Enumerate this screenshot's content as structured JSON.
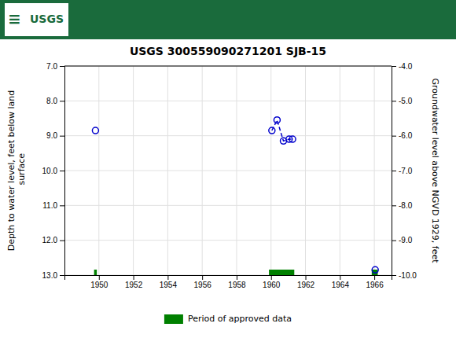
{
  "chart_data": {
    "type": "scatter",
    "title": "USGS 300559090271201 SJB-15",
    "annotations": [
      "≡",
      "USGS"
    ],
    "xlabel": null,
    "ylabel": "Depth to water level, feet below land\n surface",
    "y2label": "Groundwater level above NGVD 1929, feet",
    "x": [
      1949.8,
      1960.05,
      1960.35,
      1960.72,
      1961.05,
      1961.25,
      1966.05
    ],
    "series": [
      {
        "type": "scatter",
        "marker": "circle",
        "color": "#0000cc",
        "values": [
          8.85,
          8.85,
          8.55,
          9.15,
          9.1,
          9.1,
          12.85
        ]
      },
      {
        "type": "line",
        "line_style": "dashed",
        "color": "#0000cc",
        "values": [
          null,
          8.85,
          8.55,
          9.15,
          9.1,
          9.1,
          null
        ]
      },
      {
        "type": "period",
        "name": "Period of approved data",
        "color": "#008000",
        "start": [
          1949.72,
          1959.88,
          1965.85
        ],
        "end": [
          1949.88,
          1961.35,
          1966.2
        ]
      }
    ],
    "xlim": [
      1948.0,
      1967.0
    ],
    "xticks": [
      1950,
      1952,
      1954,
      1956,
      1958,
      1960,
      1962,
      1964,
      1966
    ],
    "ylim": [
      13.0,
      7.0
    ],
    "yticks": [
      {
        "value": 7.0,
        "label": "7.0"
      },
      {
        "value": 8.0,
        "label": "8.0"
      },
      {
        "value": 9.0,
        "label": "9.0"
      },
      {
        "value": 10.0,
        "label": "10.0"
      },
      {
        "value": 11.0,
        "label": "11.0"
      },
      {
        "value": 12.0,
        "label": "12.0"
      },
      {
        "value": 13.0,
        "label": "13.0"
      }
    ],
    "y2lim": [
      -10.0,
      -4.0
    ],
    "y2ticks": [
      {
        "value": -4.0,
        "label": "-4.0"
      },
      {
        "value": -5.0,
        "label": "-5.0"
      },
      {
        "value": -6.0,
        "label": "-6.0"
      },
      {
        "value": -7.0,
        "label": "-7.0"
      },
      {
        "value": -8.0,
        "label": "-8.0"
      },
      {
        "value": -9.0,
        "label": "-9.0"
      },
      {
        "value": -10.0,
        "label": "-10.0"
      }
    ],
    "grid": true,
    "legend": "bottom"
  }
}
